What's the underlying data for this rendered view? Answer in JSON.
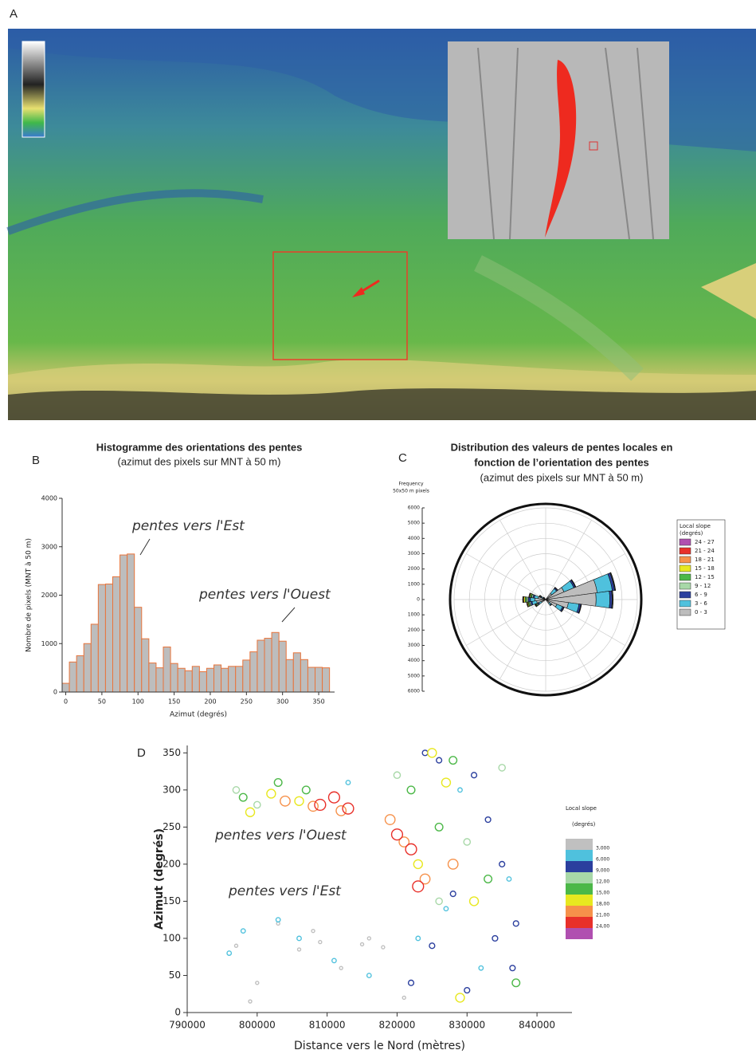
{
  "map": {
    "label": "A"
  },
  "chart_data": [
    {
      "type": "histogram",
      "label": "B",
      "title": [
        "Histogramme des orientations des pentes",
        "(azimut des pixels sur MNT à 50 m)"
      ],
      "x_label": "Azimut (degrés)",
      "y_label": "Nombre de pixels (MNT à 50 m)",
      "annotations": [
        "pentes vers l'Est",
        "pentes vers l'Ouest"
      ],
      "bins": [
        -5,
        5,
        15,
        25,
        35,
        45,
        55,
        65,
        75,
        85,
        95,
        105,
        115,
        125,
        135,
        145,
        155,
        165,
        175,
        185,
        195,
        205,
        215,
        225,
        235,
        245,
        255,
        265,
        275,
        285,
        295,
        305,
        315,
        325,
        335,
        345,
        355,
        365
      ],
      "values": [
        180,
        620,
        750,
        1000,
        1400,
        2220,
        2230,
        2380,
        2830,
        2850,
        1750,
        1100,
        600,
        500,
        930,
        590,
        490,
        440,
        530,
        420,
        490,
        560,
        490,
        530,
        530,
        660,
        830,
        1070,
        1110,
        1230,
        1050,
        670,
        810,
        670,
        510,
        510,
        500
      ],
      "color": "#bdbdbd",
      "edge_color": "#e8743b",
      "xlim": [
        -5,
        372
      ],
      "ylim": [
        0,
        4000
      ],
      "xticks": [
        0,
        50,
        100,
        150,
        200,
        250,
        300,
        350
      ],
      "yticks": [
        0,
        1000,
        2000,
        3000,
        4000
      ]
    },
    {
      "type": "rose",
      "label": "C",
      "title": [
        "Distribution des valeurs de pentes locales en",
        "fonction de l’orientation des pentes",
        "(azimut des pixels sur MNT à 50 m)"
      ],
      "r_label": [
        "Frequency",
        "50x50 m pixels"
      ],
      "legend_title": [
        "Local slope",
        "(degrés)"
      ],
      "rlim": [
        0,
        6000
      ],
      "rticks": [
        0,
        1000,
        2000,
        3000,
        4000,
        5000,
        6000
      ],
      "directions": [
        45,
        60,
        75,
        90,
        105,
        120,
        135,
        240,
        255,
        270,
        285,
        300,
        315
      ],
      "series": [
        {
          "name": "24 - 27",
          "color": "#b04fb0",
          "values": [
            0,
            0,
            0,
            0,
            0,
            0,
            0,
            0,
            0,
            10,
            0,
            0,
            0
          ]
        },
        {
          "name": "21 - 24",
          "color": "#e8302a",
          "values": [
            0,
            0,
            0,
            0,
            0,
            0,
            0,
            10,
            10,
            20,
            10,
            0,
            0
          ]
        },
        {
          "name": "18 - 21",
          "color": "#f6914a",
          "values": [
            0,
            0,
            0,
            0,
            0,
            0,
            0,
            30,
            40,
            50,
            40,
            10,
            0
          ]
        },
        {
          "name": "15 - 18",
          "color": "#e8e820",
          "values": [
            5,
            5,
            10,
            10,
            5,
            5,
            0,
            40,
            60,
            80,
            60,
            20,
            5
          ]
        },
        {
          "name": "12 - 15",
          "color": "#4cb848",
          "values": [
            10,
            10,
            20,
            20,
            10,
            10,
            5,
            60,
            80,
            100,
            80,
            40,
            10
          ]
        },
        {
          "name": "9 - 12",
          "color": "#a8d8a8",
          "values": [
            20,
            30,
            40,
            40,
            30,
            20,
            10,
            60,
            80,
            100,
            80,
            40,
            10
          ]
        },
        {
          "name": "6 - 9",
          "color": "#2b3f9e",
          "values": [
            80,
            100,
            150,
            150,
            120,
            80,
            40,
            80,
            100,
            150,
            100,
            60,
            20
          ]
        },
        {
          "name": "3 - 6",
          "color": "#4fc1dd",
          "values": [
            400,
            700,
            1000,
            900,
            700,
            400,
            150,
            200,
            300,
            300,
            250,
            100,
            50
          ]
        },
        {
          "name": "0 - 3",
          "color": "#bdbdbd",
          "values": [
            500,
            1300,
            3400,
            3300,
            1500,
            800,
            300,
            300,
            600,
            700,
            500,
            200,
            100
          ]
        }
      ]
    },
    {
      "type": "scatter",
      "label": "D",
      "x_label": "Distance vers le Nord (mètres)",
      "y_label": "Azimut (degrés)",
      "annotations": [
        "pentes vers l'Ouest",
        "pentes vers l'Est"
      ],
      "legend_title": [
        "Local slope",
        "(degrés)"
      ],
      "xlim": [
        790000,
        845000
      ],
      "ylim": [
        0,
        360
      ],
      "xticks": [
        790000,
        800000,
        810000,
        820000,
        830000,
        840000
      ],
      "yticks": [
        0,
        50,
        100,
        150,
        200,
        250,
        300,
        350
      ],
      "series": [
        {
          "name": "3,000",
          "color": "#c0c0c0",
          "x": [
            797000,
            800000,
            803000,
            806000,
            809000,
            812000,
            815000,
            818000,
            821000,
            799000,
            808000,
            816000
          ],
          "values": [
            90,
            40,
            120,
            85,
            95,
            60,
            92,
            88,
            20,
            15,
            110,
            100
          ]
        },
        {
          "name": "6,000",
          "color": "#4fc1dd",
          "x": [
            796000,
            798000,
            803000,
            806000,
            811000,
            816000,
            823000,
            827000,
            832000,
            836000,
            813000,
            829000
          ],
          "values": [
            80,
            110,
            125,
            100,
            70,
            50,
            100,
            140,
            60,
            180,
            310,
            300
          ]
        },
        {
          "name": "9,000",
          "color": "#2b3f9e",
          "x": [
            822000,
            825000,
            828000,
            830000,
            833000,
            835000,
            837000,
            831000,
            826000,
            834000,
            836500,
            824000
          ],
          "values": [
            40,
            90,
            160,
            30,
            260,
            200,
            120,
            320,
            340,
            100,
            60,
            350
          ]
        },
        {
          "name": "12,00",
          "color": "#a8d8a8",
          "x": [
            797000,
            800000,
            820000,
            826000,
            830000,
            835000
          ],
          "values": [
            300,
            280,
            320,
            150,
            230,
            330
          ]
        },
        {
          "name": "15,00",
          "color": "#4cb848",
          "x": [
            798000,
            803000,
            807000,
            822000,
            828000,
            833000,
            837000,
            826000
          ],
          "values": [
            290,
            310,
            300,
            300,
            340,
            180,
            40,
            250
          ]
        },
        {
          "name": "18,00",
          "color": "#e8e820",
          "x": [
            799000,
            802000,
            806000,
            823000,
            827000,
            831000,
            829000,
            825000
          ],
          "values": [
            270,
            295,
            285,
            200,
            310,
            150,
            20,
            350
          ]
        },
        {
          "name": "21,00",
          "color": "#f6914a",
          "x": [
            804000,
            808000,
            812000,
            819000,
            821000,
            824000,
            828000
          ],
          "values": [
            285,
            278,
            272,
            260,
            230,
            180,
            200
          ]
        },
        {
          "name": "24,00",
          "color": "#e8302a",
          "x": [
            809000,
            811000,
            813000,
            820000,
            822000,
            823000
          ],
          "values": [
            280,
            290,
            275,
            240,
            220,
            170
          ]
        }
      ]
    }
  ]
}
